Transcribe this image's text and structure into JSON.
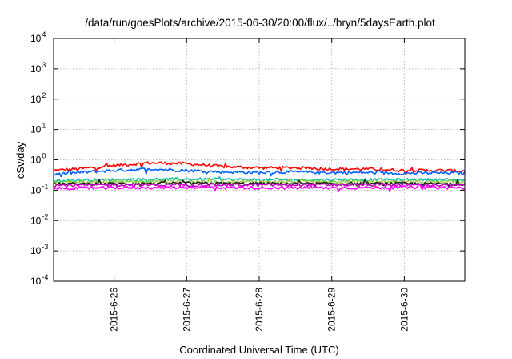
{
  "chart_data": {
    "type": "line",
    "title": "/data/run/goesPlots/archive/2015-06-30/20:00/flux/../bryn/5daysEarth.plot",
    "xlabel": "Coordinated Universal Time (UTC)",
    "ylabel": "cSv/day",
    "yscale": "log",
    "ylim_exp": [
      -4,
      4
    ],
    "xlim": [
      "2015-06-25 04:00",
      "2015-06-30 20:00"
    ],
    "x_ticks": [
      "2015-6-26",
      "2015-6-27",
      "2015-6-28",
      "2015-6-29",
      "2015-6-30"
    ],
    "y_ticks": [
      {
        "base": "10",
        "exp": "-4"
      },
      {
        "base": "10",
        "exp": "-3"
      },
      {
        "base": "10",
        "exp": "-2"
      },
      {
        "base": "10",
        "exp": "-1"
      },
      {
        "base": "10",
        "exp": "0"
      },
      {
        "base": "10",
        "exp": "1"
      },
      {
        "base": "10",
        "exp": "2"
      },
      {
        "base": "10",
        "exp": "3"
      },
      {
        "base": "10",
        "exp": "4"
      }
    ],
    "grid": true,
    "series": [
      {
        "color": "#ff0000",
        "x": [
          "2015-06-25 04:00",
          "2015-06-25 12:00",
          "2015-06-26 00:00",
          "2015-06-26 12:00",
          "2015-06-27 00:00",
          "2015-06-27 12:00",
          "2015-06-28 00:00",
          "2015-06-28 12:00",
          "2015-06-29 00:00",
          "2015-06-29 12:00",
          "2015-06-30 00:00",
          "2015-06-30 12:00",
          "2015-06-30 20:00"
        ],
        "values": [
          0.45,
          0.5,
          0.65,
          0.8,
          0.75,
          0.6,
          0.55,
          0.55,
          0.5,
          0.5,
          0.45,
          0.45,
          0.43
        ]
      },
      {
        "color": "#0060ff",
        "x": [
          "2015-06-25 04:00",
          "2015-06-25 12:00",
          "2015-06-26 00:00",
          "2015-06-26 12:00",
          "2015-06-27 00:00",
          "2015-06-27 12:00",
          "2015-06-28 00:00",
          "2015-06-28 12:00",
          "2015-06-29 00:00",
          "2015-06-29 12:00",
          "2015-06-30 00:00",
          "2015-06-30 12:00",
          "2015-06-30 20:00"
        ],
        "values": [
          0.33,
          0.38,
          0.45,
          0.5,
          0.45,
          0.4,
          0.38,
          0.4,
          0.38,
          0.38,
          0.36,
          0.37,
          0.37
        ]
      },
      {
        "color": "#00c0a0",
        "x": [
          "2015-06-25 04:00",
          "2015-06-26 00:00",
          "2015-06-27 00:00",
          "2015-06-28 00:00",
          "2015-06-29 00:00",
          "2015-06-30 00:00",
          "2015-06-30 20:00"
        ],
        "values": [
          0.21,
          0.22,
          0.23,
          0.22,
          0.22,
          0.22,
          0.22
        ]
      },
      {
        "color": "#a0d040",
        "x": [
          "2015-06-25 04:00",
          "2015-06-26 00:00",
          "2015-06-27 00:00",
          "2015-06-28 00:00",
          "2015-06-29 00:00",
          "2015-06-30 00:00",
          "2015-06-30 20:00"
        ],
        "values": [
          0.18,
          0.19,
          0.19,
          0.19,
          0.19,
          0.19,
          0.19
        ]
      },
      {
        "color": "#202020",
        "x": [
          "2015-06-25 04:00",
          "2015-06-26 00:00",
          "2015-06-27 00:00",
          "2015-06-28 00:00",
          "2015-06-29 00:00",
          "2015-06-30 00:00",
          "2015-06-30 20:00"
        ],
        "values": [
          0.16,
          0.165,
          0.17,
          0.165,
          0.165,
          0.165,
          0.16
        ]
      },
      {
        "color": "#c000c0",
        "x": [
          "2015-06-25 04:00",
          "2015-06-26 00:00",
          "2015-06-27 00:00",
          "2015-06-28 00:00",
          "2015-06-29 00:00",
          "2015-06-30 00:00",
          "2015-06-30 20:00"
        ],
        "values": [
          0.145,
          0.15,
          0.15,
          0.15,
          0.15,
          0.15,
          0.145
        ]
      },
      {
        "color": "#ff00ff",
        "x": [
          "2015-06-25 04:00",
          "2015-06-26 00:00",
          "2015-06-27 00:00",
          "2015-06-28 00:00",
          "2015-06-29 00:00",
          "2015-06-30 00:00",
          "2015-06-30 20:00"
        ],
        "values": [
          0.115,
          0.12,
          0.125,
          0.12,
          0.12,
          0.125,
          0.12
        ]
      }
    ]
  }
}
